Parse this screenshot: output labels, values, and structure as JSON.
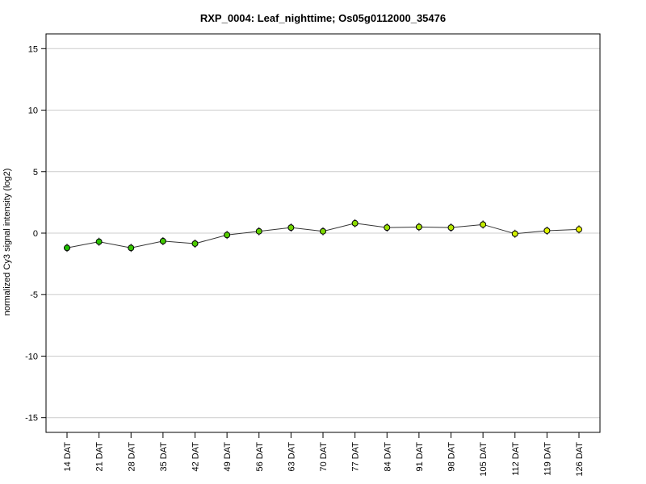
{
  "chart_data": {
    "type": "line",
    "title": "RXP_0004: Leaf_nighttime; Os05g0112000_35476",
    "xlabel": "",
    "ylabel": "normalized Cy3 signal intensity (log2)",
    "categories": [
      "14 DAT",
      "21 DAT",
      "28 DAT",
      "35 DAT",
      "42 DAT",
      "49 DAT",
      "56 DAT",
      "63 DAT",
      "70 DAT",
      "77 DAT",
      "84 DAT",
      "91 DAT",
      "98 DAT",
      "105 DAT",
      "112 DAT",
      "119 DAT",
      "126 DAT"
    ],
    "values": [
      -1.2,
      -0.7,
      -1.2,
      -0.65,
      -0.85,
      -0.15,
      0.15,
      0.45,
      0.15,
      0.8,
      0.45,
      0.5,
      0.45,
      0.7,
      -0.05,
      0.2,
      0.3
    ],
    "point_colors": [
      "#1fbf00",
      "#2ac200",
      "#35c500",
      "#40c800",
      "#4bcb00",
      "#56ce00",
      "#62d100",
      "#6fd400",
      "#7dd800",
      "#8bdc00",
      "#99e000",
      "#a7e400",
      "#b6e800",
      "#c4ec00",
      "#d2f000",
      "#e0f400",
      "#eef800"
    ],
    "yticks": [
      -15,
      -10,
      -5,
      0,
      5,
      10,
      15
    ],
    "ylim": [
      -16.2,
      16.2
    ],
    "grid": true,
    "line_color": "#333333",
    "grid_color": "#cccccc"
  }
}
